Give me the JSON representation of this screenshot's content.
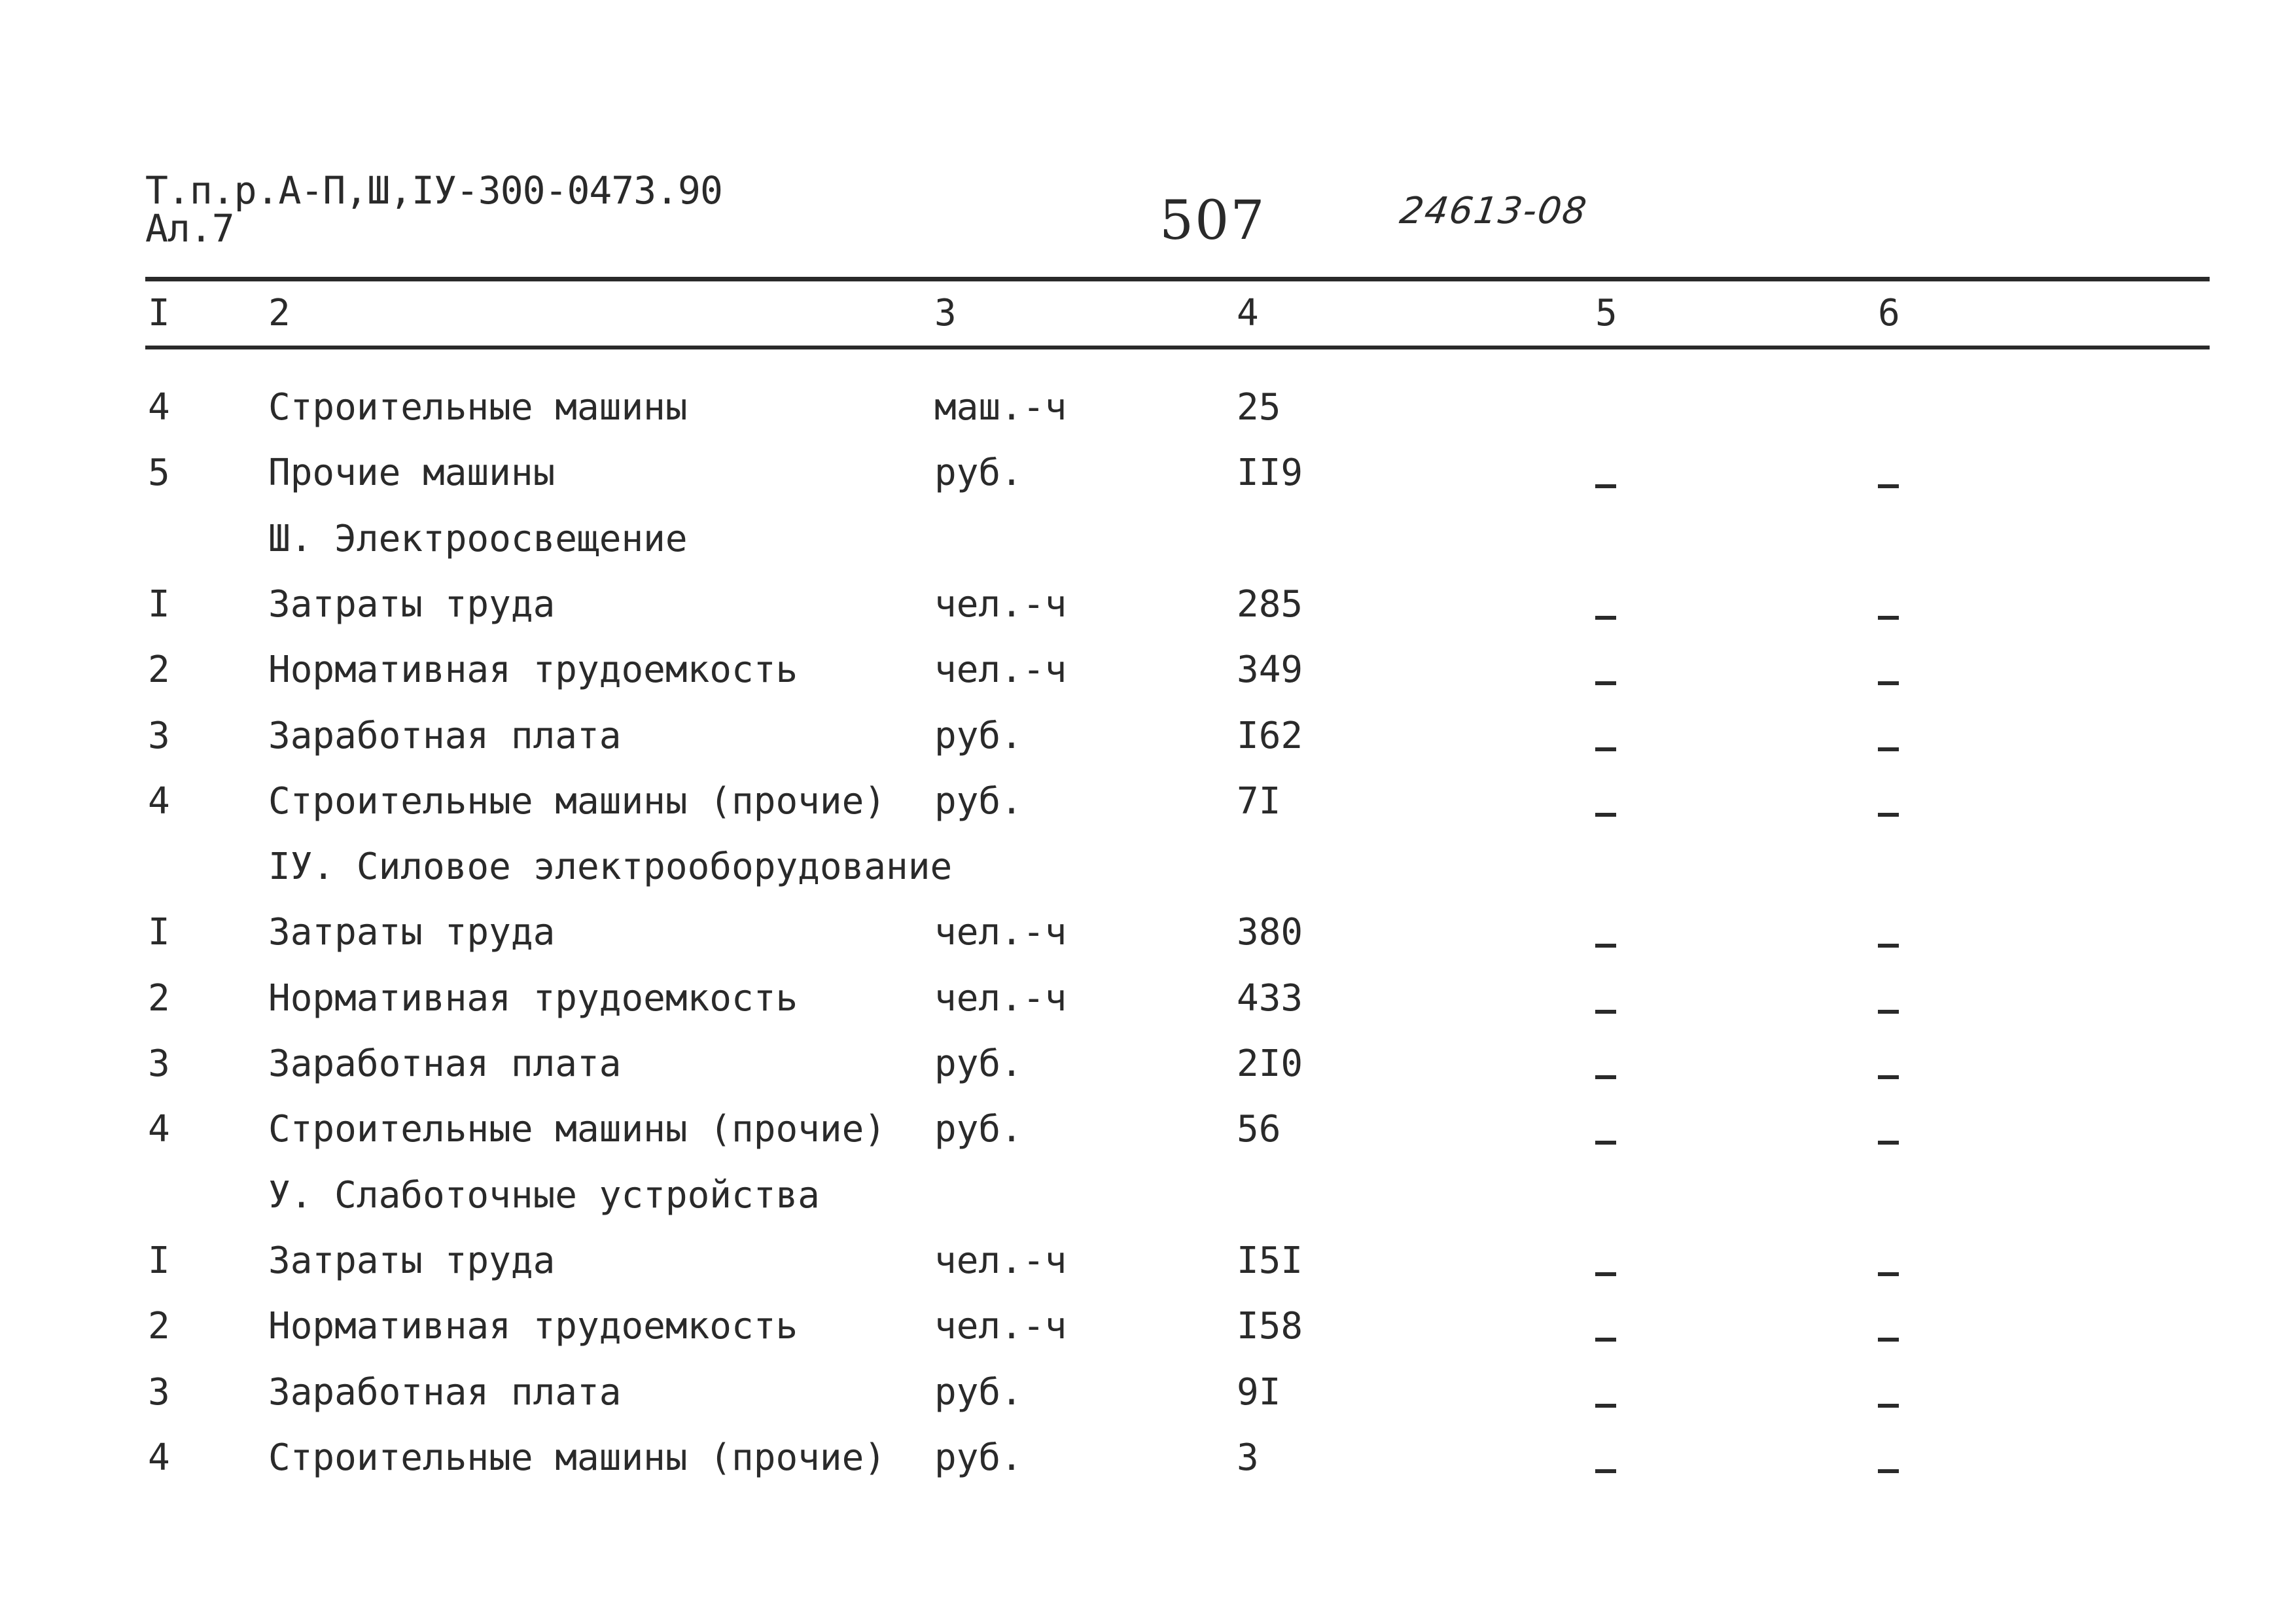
{
  "header": {
    "line1": "Т.п.р.А-П,Ш,IУ-300-0473.90",
    "line2": "Ал.7",
    "page_number": "507",
    "doc_code": "24613-08"
  },
  "columns": [
    "I",
    "2",
    "3",
    "4",
    "5",
    "6"
  ],
  "rows": [
    {
      "n": "4",
      "name": "Строительные машины",
      "unit": "маш.-ч",
      "value": "25",
      "c5": "",
      "c6": ""
    },
    {
      "n": "5",
      "name": "Прочие машины",
      "unit": "руб.",
      "value": "II9",
      "c5": "-",
      "c6": "-"
    },
    {
      "n": "",
      "name": "Ш. Электроосвещение",
      "unit": "",
      "value": "",
      "c5": "",
      "c6": ""
    },
    {
      "n": "I",
      "name": "Затраты труда",
      "unit": "чел.-ч",
      "value": "285",
      "c5": "-",
      "c6": "-"
    },
    {
      "n": "2",
      "name": "Нормативная трудоемкость",
      "unit": "чел.-ч",
      "value": "349",
      "c5": "-",
      "c6": "-"
    },
    {
      "n": "3",
      "name": "Заработная плата",
      "unit": "руб.",
      "value": "I62",
      "c5": "-",
      "c6": "-"
    },
    {
      "n": "4",
      "name": "Строительные машины (прочие)",
      "unit": "руб.",
      "value": "7I",
      "c5": "-",
      "c6": "-"
    },
    {
      "n": "",
      "name": "IУ. Силовое электрооборудование",
      "unit": "",
      "value": "",
      "c5": "",
      "c6": ""
    },
    {
      "n": "I",
      "name": "Затраты труда",
      "unit": "чел.-ч",
      "value": "380",
      "c5": "-",
      "c6": "-"
    },
    {
      "n": "2",
      "name": "Нормативная трудоемкость",
      "unit": "чел.-ч",
      "value": "433",
      "c5": "-",
      "c6": "-"
    },
    {
      "n": "3",
      "name": "Заработная плата",
      "unit": "руб.",
      "value": "2I0",
      "c5": "-",
      "c6": "-"
    },
    {
      "n": "4",
      "name": "Строительные машины (прочие)",
      "unit": "руб.",
      "value": "56",
      "c5": "-",
      "c6": "-"
    },
    {
      "n": "",
      "name": "У. Слаботочные устройства",
      "unit": "",
      "value": "",
      "c5": "",
      "c6": ""
    },
    {
      "n": "I",
      "name": "Затраты труда",
      "unit": "чел.-ч",
      "value": "I5I",
      "c5": "-",
      "c6": "-"
    },
    {
      "n": "2",
      "name": "Нормативная трудоемкость",
      "unit": "чел.-ч",
      "value": "I58",
      "c5": "-",
      "c6": "-"
    },
    {
      "n": "3",
      "name": "Заработная плата",
      "unit": "руб.",
      "value": "9I",
      "c5": "-",
      "c6": "-"
    },
    {
      "n": "4",
      "name": "Строительные машины (прочие)",
      "unit": "руб.",
      "value": "3",
      "c5": "-",
      "c6": "-"
    }
  ]
}
